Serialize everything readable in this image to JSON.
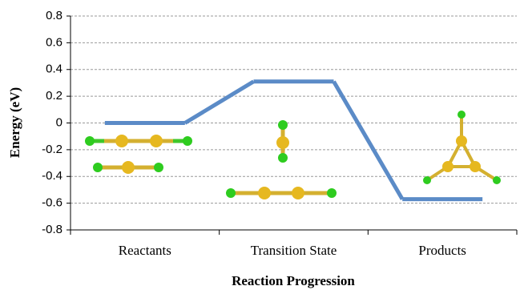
{
  "chart_data": {
    "type": "energy-profile",
    "y_label": "Energy (eV)",
    "x_label": "Reaction Progression",
    "categories": [
      "Reactants",
      "Transition State",
      "Products"
    ],
    "values": [
      0,
      0.31,
      -0.57
    ],
    "color": "#5b8bc7",
    "ylim": [
      -0.8,
      0.8
    ],
    "yticks": [
      0.8,
      0.6,
      0.4,
      0.2,
      0,
      -0.2,
      -0.4,
      -0.6,
      -0.8
    ],
    "grid": true
  }
}
